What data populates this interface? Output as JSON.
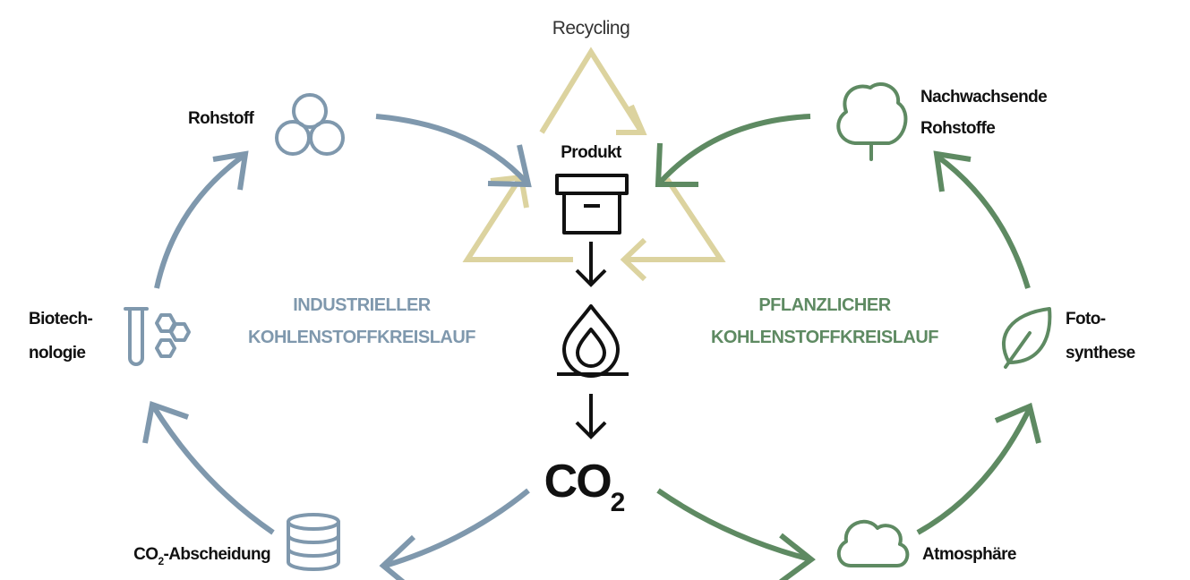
{
  "recycling": "Recycling",
  "product": "Produkt",
  "co2": {
    "main": "CO",
    "sub": "2"
  },
  "industrial_cycle": [
    "INDUSTRIELLER",
    "KOHLENSTOFFKREISLAUF"
  ],
  "plant_cycle": [
    "PFLANZLICHER",
    "KOHLENSTOFFKREISLAUF"
  ],
  "raw_material": "Rohstoff",
  "biotechnology": [
    "Biotech-",
    "nologie"
  ],
  "co2_capture": {
    "main": "CO",
    "sub": "2",
    "rest": "-Abscheidung"
  },
  "renewables": [
    "Nachwachsende",
    "Rohstoffe"
  ],
  "photosynthesis": [
    "Foto-",
    "synthese"
  ],
  "atmosphere": "Atmosphäre"
}
